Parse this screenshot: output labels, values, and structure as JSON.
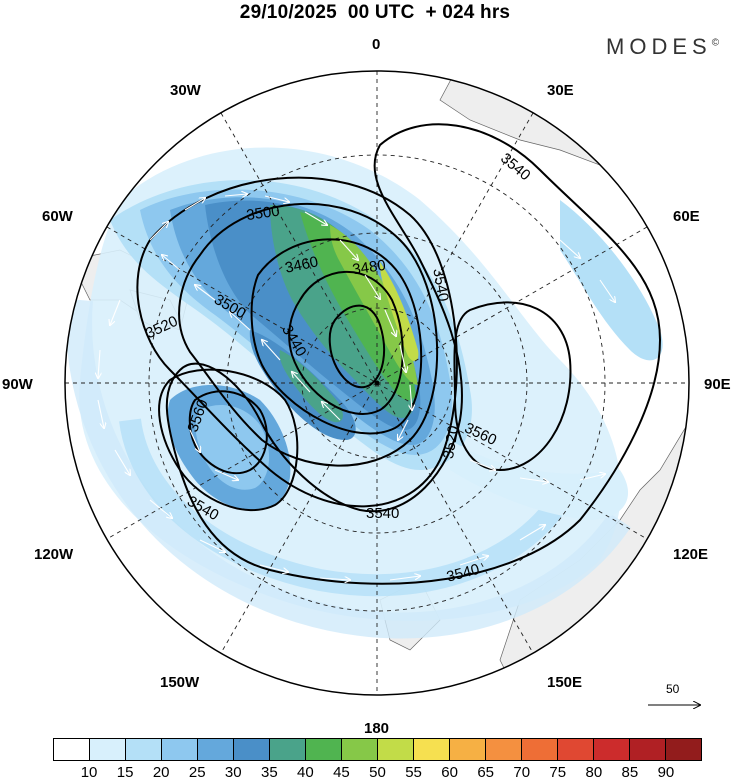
{
  "title": "29/10/2025  00 UTC  + 024 hrs",
  "brand": {
    "name": "MODES",
    "mark": "©"
  },
  "map": {
    "projection": "north-polar-stereographic",
    "longitude_labels": [
      "0",
      "30E",
      "60E",
      "90E",
      "120E",
      "150E",
      "180",
      "150W",
      "120W",
      "90W",
      "60W",
      "30W"
    ],
    "contour_labels": [
      "3460",
      "3480",
      "3500",
      "3500",
      "3520",
      "3520",
      "3540",
      "3540",
      "3540",
      "3540",
      "3560",
      "3560",
      "3540",
      "3440"
    ],
    "reference_vector": "50"
  },
  "colorbar": {
    "ticks": [
      "10",
      "15",
      "20",
      "25",
      "30",
      "35",
      "40",
      "45",
      "50",
      "55",
      "60",
      "65",
      "70",
      "75",
      "80",
      "85",
      "90"
    ],
    "colors": [
      "#ffffff",
      "#d8f0fc",
      "#b4e0f7",
      "#8ec8ef",
      "#64a8dc",
      "#4a8fc8",
      "#4aa38a",
      "#50b450",
      "#86c848",
      "#c2dc48",
      "#f6e050",
      "#f6b044",
      "#f49040",
      "#ee6e36",
      "#e04832",
      "#cc2c2c",
      "#b02024",
      "#921c1c"
    ]
  }
}
